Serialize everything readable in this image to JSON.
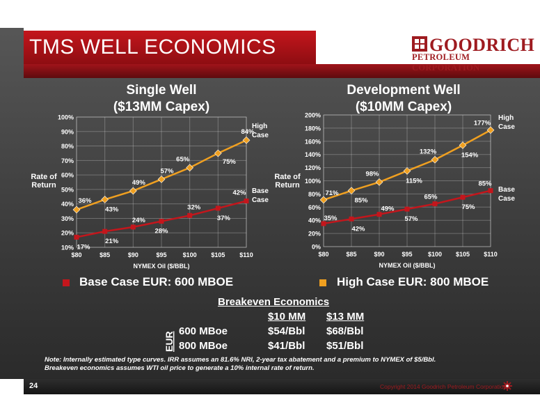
{
  "title": "TMS WELL ECONOMICS",
  "logo": {
    "name": "GOODRICH",
    "sub": "PETROLEUM CORPORATION"
  },
  "chart_data": [
    {
      "type": "line",
      "title": "Single Well ($13MM Capex)",
      "title_lines": [
        "Single Well",
        "($13MM Capex)"
      ],
      "xlabel": "NYMEX Oil ($/BBL)",
      "ylabel_lines": [
        "Rate of",
        "Return"
      ],
      "categories": [
        "$80",
        "$85",
        "$90",
        "$95",
        "$100",
        "$105",
        "$110"
      ],
      "ylim": [
        10,
        100
      ],
      "y_ticks": [
        10,
        20,
        30,
        40,
        50,
        60,
        70,
        80,
        90,
        100
      ],
      "y_tick_labels": [
        "10%",
        "20%",
        "30%",
        "40%",
        "50%",
        "60%",
        "70%",
        "80%",
        "90%",
        "100%"
      ],
      "grid": true,
      "series": [
        {
          "name": "High Case",
          "name_lines": [
            "High",
            "Case"
          ],
          "color": "#f0a020",
          "values": [
            36,
            43,
            49,
            57,
            65,
            75,
            84
          ],
          "labels": [
            "36%",
            "43%",
            "49%",
            "57%",
            "65%",
            "75%",
            "84%"
          ]
        },
        {
          "name": "Base Case",
          "name_lines": [
            "Base",
            "Case"
          ],
          "color": "#c4161c",
          "values": [
            17,
            21,
            24,
            28,
            32,
            37,
            42
          ],
          "labels": [
            "17%",
            "21%",
            "24%",
            "28%",
            "32%",
            "37%",
            "42%"
          ]
        }
      ]
    },
    {
      "type": "line",
      "title": "Development Well ($10MM Capex)",
      "title_lines": [
        "Development Well",
        "($10MM Capex)"
      ],
      "xlabel": "NYMEX Oil ($/BBL)",
      "ylabel_lines": [
        "Rate of",
        "Return"
      ],
      "categories": [
        "$80",
        "$85",
        "$90",
        "$95",
        "$100",
        "$105",
        "$110"
      ],
      "ylim": [
        0,
        200
      ],
      "y_ticks": [
        0,
        20,
        40,
        60,
        80,
        100,
        120,
        140,
        160,
        180,
        200
      ],
      "y_tick_labels": [
        "0%",
        "20%",
        "40%",
        "60%",
        "80%",
        "100%",
        "120%",
        "140%",
        "160%",
        "180%",
        "200%"
      ],
      "grid": true,
      "series": [
        {
          "name": "High Case",
          "name_lines": [
            "High",
            "Case"
          ],
          "color": "#f0a020",
          "values": [
            71,
            85,
            98,
            115,
            132,
            154,
            177
          ],
          "labels": [
            "71%",
            "85%",
            "98%",
            "115%",
            "132%",
            "154%",
            "177%"
          ]
        },
        {
          "name": "Base Case",
          "name_lines": [
            "Base",
            "Case"
          ],
          "color": "#c4161c",
          "values": [
            35,
            42,
            49,
            57,
            65,
            75,
            85
          ],
          "labels": [
            "35%",
            "42%",
            "49%",
            "57%",
            "65%",
            "75%",
            "85%"
          ]
        }
      ]
    }
  ],
  "legend": {
    "base": {
      "label": "Base Case EUR: 600 MBOE",
      "color": "#c4161c"
    },
    "high": {
      "label": "High Case EUR: 800 MBOE",
      "color": "#f0a020"
    }
  },
  "breakeven": {
    "title": "Breakeven Economics",
    "col1": "$10 MM",
    "col2": "$13 MM",
    "side_label": "EUR",
    "rows": [
      {
        "label": "600 MBoe",
        "v1": "$54/Bbl",
        "v2": "$68/Bbl"
      },
      {
        "label": "800 MBoe",
        "v1": "$41/Bbl",
        "v2": "$51/Bbl"
      }
    ]
  },
  "note": "Note:  Internally estimated type curves.  IRR assumes an 81.6% NRI, 2-year tax abatement and a premium to NYMEX of $5/Bbl.  Breakeven economics assumes WTI oil price to generate  a 10% internal rate of return.",
  "footer": {
    "page": "24",
    "copyright": "Copyright 2014 Goodrich Petroleum Corporation"
  }
}
